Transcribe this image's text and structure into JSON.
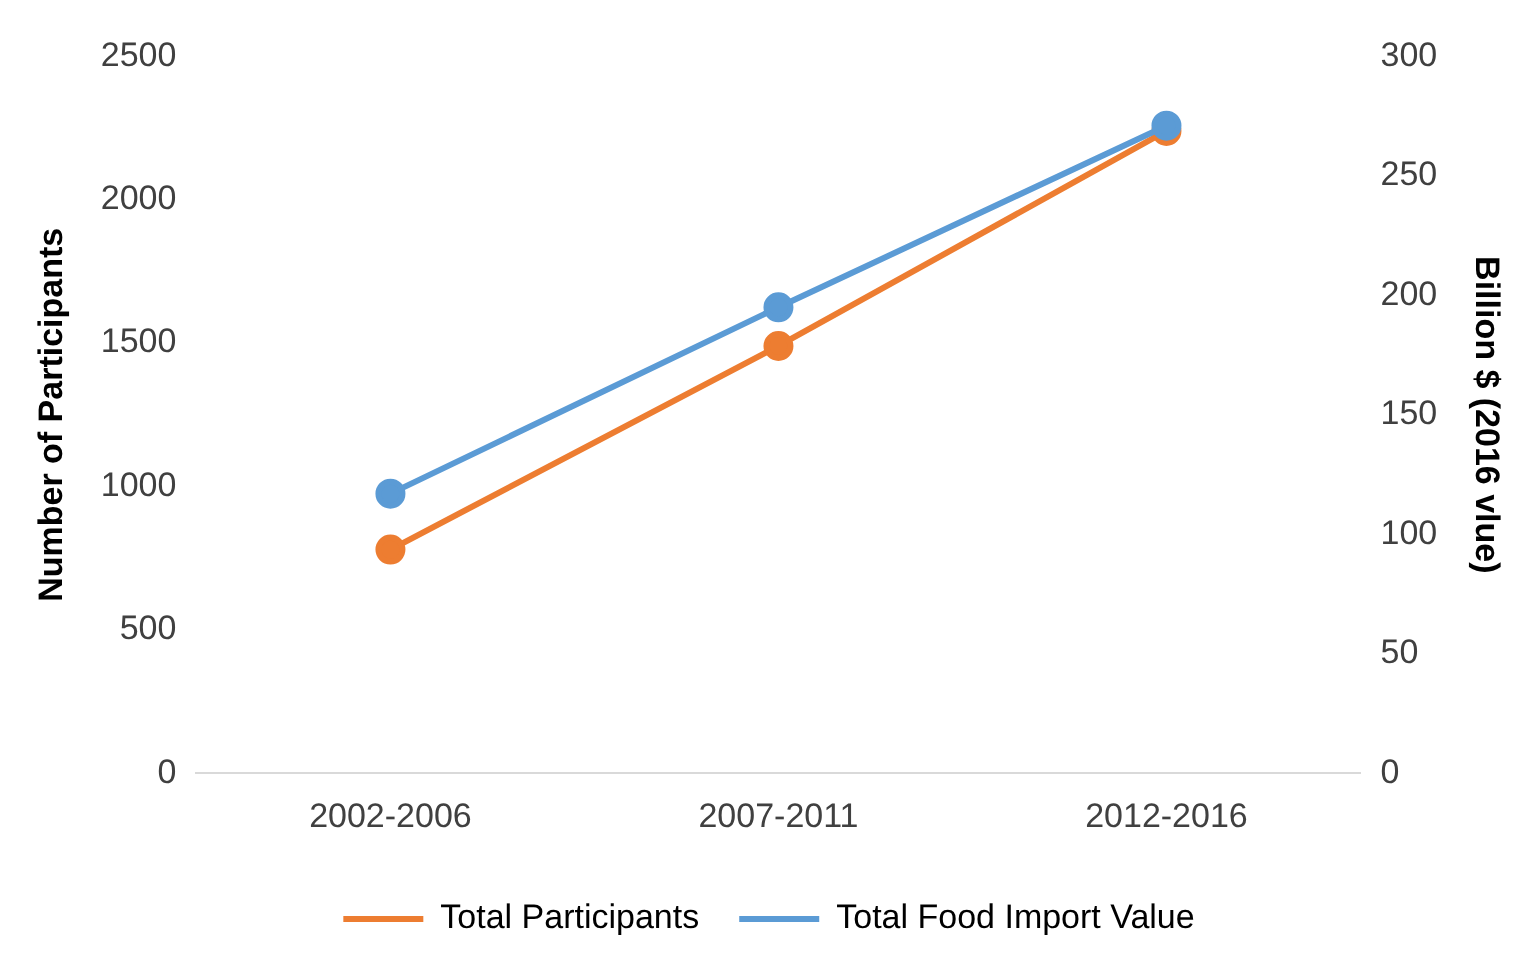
{
  "chart_data": {
    "type": "line",
    "ylabel": "Number of Participants",
    "y2label": "Billion $ (2016 vlue)",
    "categories": [
      "2002-2006",
      "2007-2011",
      "2012-2016"
    ],
    "series": [
      {
        "name": "Total Participants",
        "color": "#ed7d31",
        "values": [
          780,
          1490,
          2240
        ]
      },
      {
        "name": "Total Food Import Value",
        "color": "#5b9bd5",
        "values": [
          117,
          195,
          271
        ],
        "axis": "y2"
      }
    ],
    "ylim": [
      0,
      2500
    ],
    "yticks": [
      0,
      500,
      1000,
      1500,
      2000,
      2500
    ],
    "y2lim": [
      0,
      300
    ],
    "y2ticks": [
      0,
      50,
      100,
      150,
      200,
      250,
      300
    ],
    "legend": "bottom",
    "grid": false,
    "marker": "circle",
    "line_style": "solid"
  }
}
